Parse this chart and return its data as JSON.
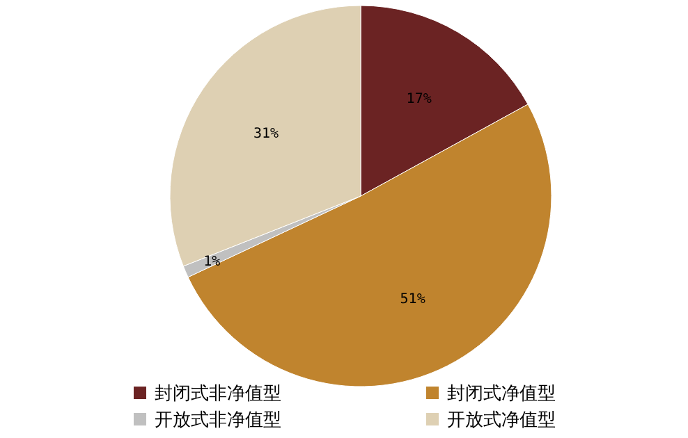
{
  "chart_data": {
    "type": "pie",
    "categories": [
      "封闭式非净值型",
      "封闭式净值型",
      "开放式非净值型",
      "开放式净值型"
    ],
    "values": [
      17,
      51,
      1,
      31
    ],
    "colors": [
      "#6b2323",
      "#c0842e",
      "#c0c0c0",
      "#ded0b3"
    ],
    "value_labels": [
      "17%",
      "51%",
      "1%",
      "31%"
    ],
    "legend": "bottom"
  }
}
